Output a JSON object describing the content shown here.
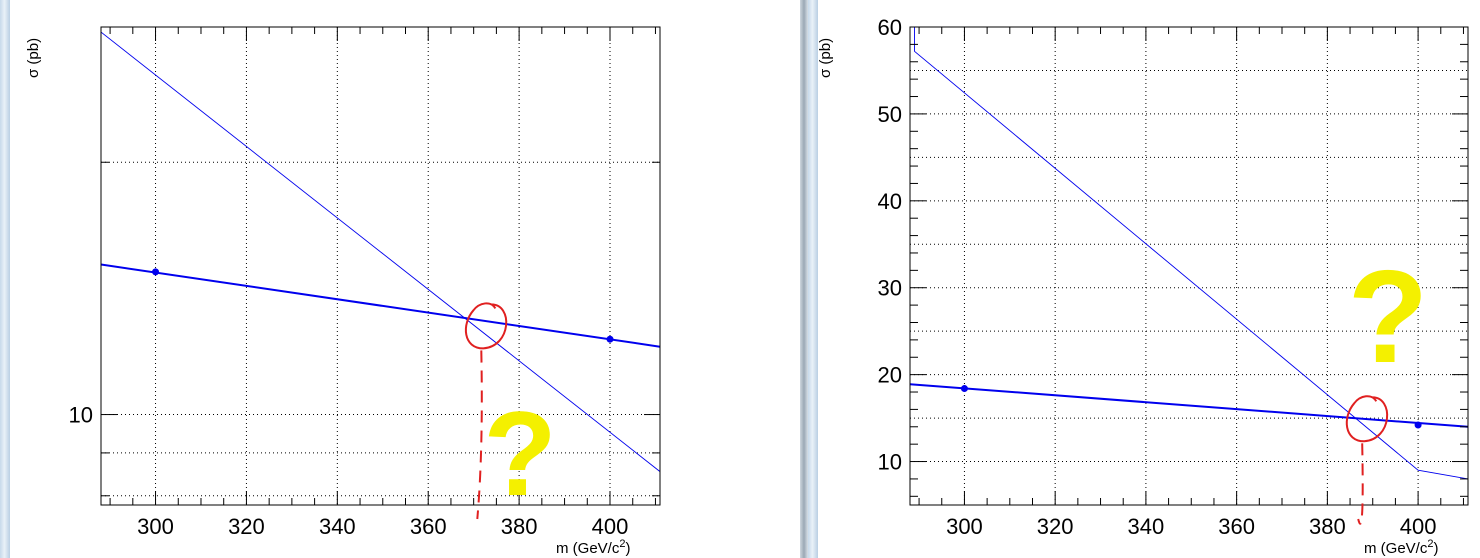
{
  "charts": {
    "left": {
      "ylabel": "σ (pb)",
      "xlabel_main": "m (GeV/c",
      "xlabel_sup": "2",
      "xlabel_close": ")",
      "annotation": "?"
    },
    "right": {
      "ylabel": "σ (pb)",
      "xlabel_main": "m (GeV/c",
      "xlabel_sup": "2",
      "xlabel_close": ")",
      "annotation": "?"
    }
  },
  "colors": {
    "series": "#0000ee",
    "annotation_circle": "#e02020",
    "annotation_question": "#f4f000",
    "grid": "#000000"
  },
  "chart_data": [
    {
      "type": "line",
      "xlim": [
        288,
        411
      ],
      "ylim": [
        7.8,
        29
      ],
      "yscale": "log",
      "x_ticks": [
        300,
        320,
        340,
        360,
        380,
        400
      ],
      "y_ticks_labeled": [
        10
      ],
      "grid": true,
      "xlabel": "m (GeV/c²)",
      "ylabel": "σ (pb)",
      "series": [
        {
          "points": [
            [
              288,
              28.6
            ],
            [
              411,
              8.55
            ]
          ]
        },
        {
          "points": [
            [
              288,
              15.1
            ],
            [
              411,
              12.05
            ]
          ],
          "markers": [
            [
              300,
              14.8
            ],
            [
              400,
              12.3
            ]
          ]
        }
      ],
      "annotation": {
        "text": "?",
        "circle_x": 373,
        "circle_y": 12.6
      }
    },
    {
      "type": "line",
      "xlim": [
        288,
        411
      ],
      "ylim": [
        5,
        60
      ],
      "yscale": "linear",
      "x_ticks": [
        300,
        320,
        340,
        360,
        380,
        400
      ],
      "y_ticks_labeled": [
        10,
        20,
        30,
        40,
        50,
        60
      ],
      "grid": true,
      "xlabel": "m (GeV/c²)",
      "ylabel": "σ (pb)",
      "series": [
        {
          "points": [
            [
              289,
              60
            ],
            [
              289,
              57.2
            ],
            [
              400,
              9
            ],
            [
              411,
              8
            ]
          ]
        },
        {
          "points": [
            [
              288,
              18.9
            ],
            [
              411,
              14.0
            ]
          ],
          "markers": [
            [
              300,
              18.4
            ],
            [
              400,
              14.2
            ]
          ]
        }
      ],
      "annotation": {
        "text": "?",
        "circle_x": 389,
        "circle_y": 14.4
      }
    }
  ]
}
